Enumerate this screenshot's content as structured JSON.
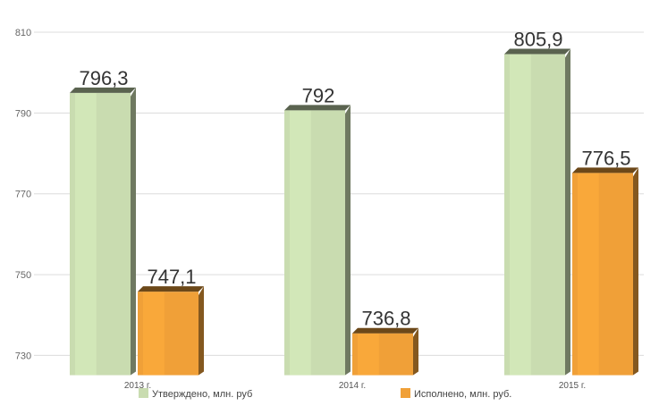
{
  "chart_data": {
    "type": "bar",
    "categories": [
      "2013 г.",
      "2014 г.",
      "2015 г."
    ],
    "series": [
      {
        "name": "Утверждено, млн. руб",
        "values": [
          796.3,
          792,
          805.9
        ],
        "labels": [
          "796,3",
          "792",
          "805,9"
        ],
        "color": "#c9dcb0"
      },
      {
        "name": "Исполнено, млн. руб.",
        "values": [
          747.1,
          736.8,
          776.5
        ],
        "labels": [
          "747,1",
          "736,8",
          "776,5"
        ],
        "color": "#f0a038"
      }
    ],
    "yticks": [
      "730",
      "750",
      "770",
      "790",
      "810"
    ],
    "ylim": [
      725,
      812
    ],
    "grid": true,
    "legend_position": "bottom"
  }
}
